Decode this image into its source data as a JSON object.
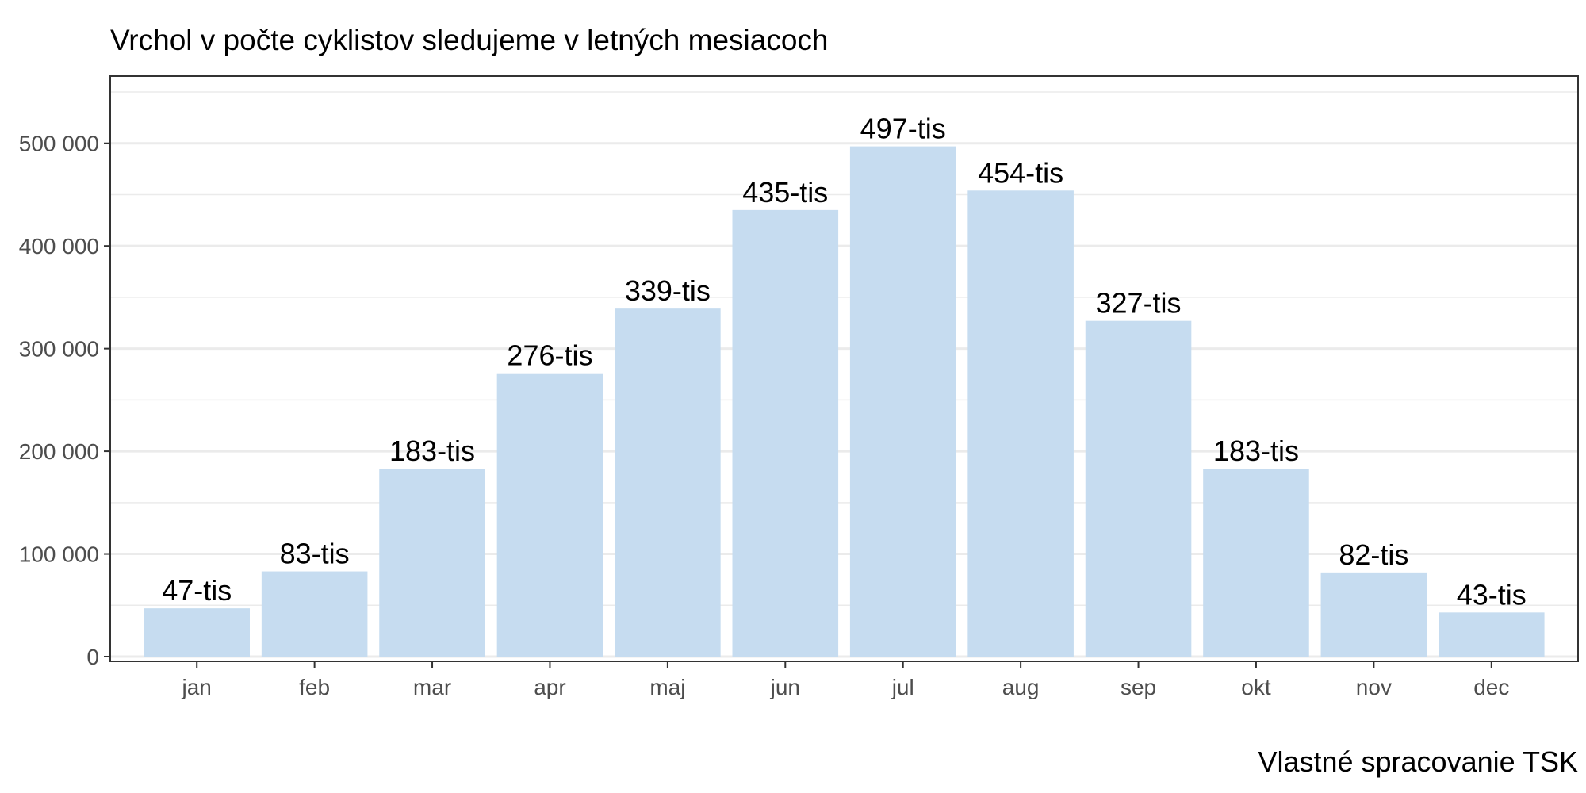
{
  "chart_data": {
    "type": "bar",
    "title": "Vrchol v počte cyklistov sledujeme v letných mesiacoch",
    "caption": "Vlastné spracovanie TSK",
    "xlabel": "",
    "ylabel": "",
    "categories": [
      "jan",
      "feb",
      "mar",
      "apr",
      "maj",
      "jun",
      "jul",
      "aug",
      "sep",
      "okt",
      "nov",
      "dec"
    ],
    "values": [
      47000,
      83000,
      183000,
      276000,
      339000,
      435000,
      497000,
      454000,
      327000,
      183000,
      82000,
      43000
    ],
    "data_labels": [
      "47-tis",
      "83-tis",
      "183-tis",
      "276-tis",
      "339-tis",
      "435-tis",
      "497-tis",
      "454-tis",
      "327-tis",
      "183-tis",
      "82-tis",
      "43-tis"
    ],
    "ylim": [
      0,
      550000
    ],
    "yticks": [
      0,
      100000,
      200000,
      300000,
      400000,
      500000
    ],
    "ytick_labels": [
      "0",
      "100 000",
      "200 000",
      "300 000",
      "400 000",
      "500 000"
    ],
    "grid": true,
    "bar_color": "#c6dcf0",
    "grid_color": "#ebebeb",
    "panel_border_color": "#333333"
  }
}
